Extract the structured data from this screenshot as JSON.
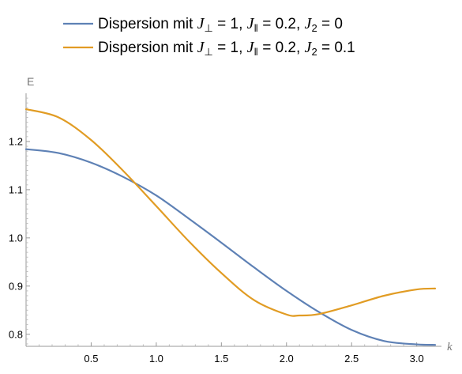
{
  "chart_data": {
    "type": "line",
    "xlabel": "k",
    "ylabel": "E",
    "xlim": [
      0,
      3.14159
    ],
    "ylim": [
      0.775,
      1.3
    ],
    "x_ticks": [
      "0.5",
      "1.0",
      "1.5",
      "2.0",
      "2.5",
      "3.0"
    ],
    "x_tick_values": [
      0.5,
      1.0,
      1.5,
      2.0,
      2.5,
      3.0
    ],
    "y_ticks": [
      "0.8",
      "0.9",
      "1.0",
      "1.1",
      "1.2"
    ],
    "y_tick_values": [
      0.8,
      0.9,
      1.0,
      1.1,
      1.2
    ],
    "grid": false,
    "legend_position": "top",
    "series": [
      {
        "color": "#5e81b5",
        "legend": {
          "prefix": "Dispersion mit ",
          "perp_value": " = 1, ",
          "par_value": " = 0.2, ",
          "j2_value": " = 0"
        },
        "x": [
          0,
          0.25,
          0.5,
          0.75,
          1.0,
          1.25,
          1.5,
          1.75,
          2.0,
          2.25,
          2.5,
          2.75,
          3.0,
          3.14159
        ],
        "y": [
          1.184,
          1.176,
          1.156,
          1.126,
          1.088,
          1.04,
          0.99,
          0.939,
          0.89,
          0.846,
          0.809,
          0.786,
          0.779,
          0.778
        ]
      },
      {
        "color": "#e19c24",
        "legend": {
          "prefix": "Dispersion  mit ",
          "perp_value": " = 1, ",
          "par_value": " = 0.2, ",
          "j2_value": " = 0.1"
        },
        "x": [
          0,
          0.25,
          0.5,
          0.75,
          1.0,
          1.25,
          1.5,
          1.75,
          2.0,
          2.1,
          2.25,
          2.5,
          2.75,
          3.0,
          3.14159
        ],
        "y": [
          1.267,
          1.25,
          1.203,
          1.138,
          1.066,
          0.993,
          0.927,
          0.871,
          0.841,
          0.839,
          0.842,
          0.86,
          0.88,
          0.893,
          0.895
        ]
      }
    ]
  }
}
